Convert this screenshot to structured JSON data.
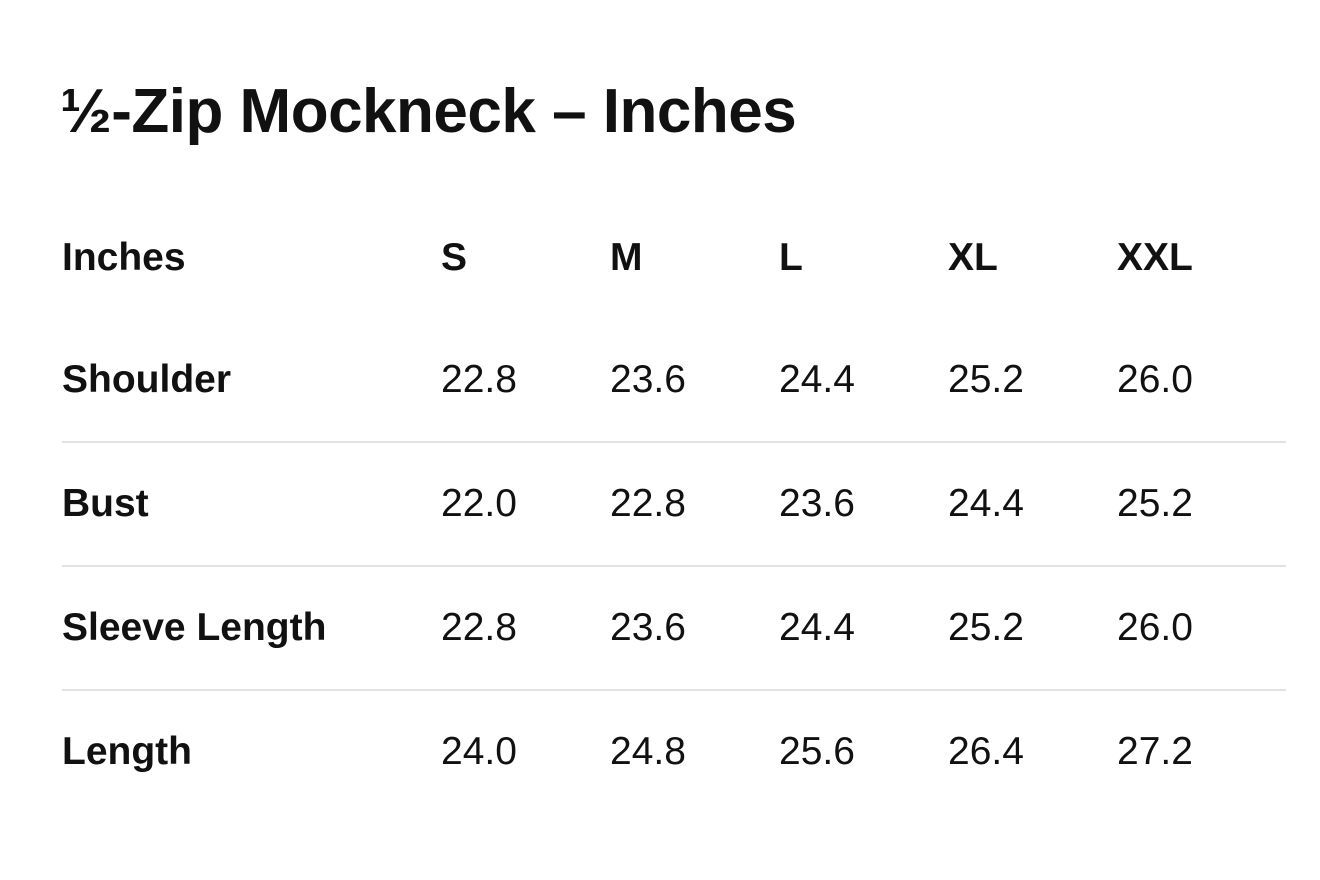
{
  "title": "½-Zip Mockneck – Inches",
  "table": {
    "headers": [
      "Inches",
      "S",
      "M",
      "L",
      "XL",
      "XXL"
    ],
    "rows": [
      {
        "label": "Shoulder",
        "values": [
          "22.8",
          "23.6",
          "24.4",
          "25.2",
          "26.0"
        ]
      },
      {
        "label": "Bust",
        "values": [
          "22.0",
          "22.8",
          "23.6",
          "24.4",
          "25.2"
        ]
      },
      {
        "label": "Sleeve Length",
        "values": [
          "22.8",
          "23.6",
          "24.4",
          "25.2",
          "26.0"
        ]
      },
      {
        "label": "Length",
        "values": [
          "24.0",
          "24.8",
          "25.6",
          "26.4",
          "27.2"
        ]
      }
    ]
  }
}
